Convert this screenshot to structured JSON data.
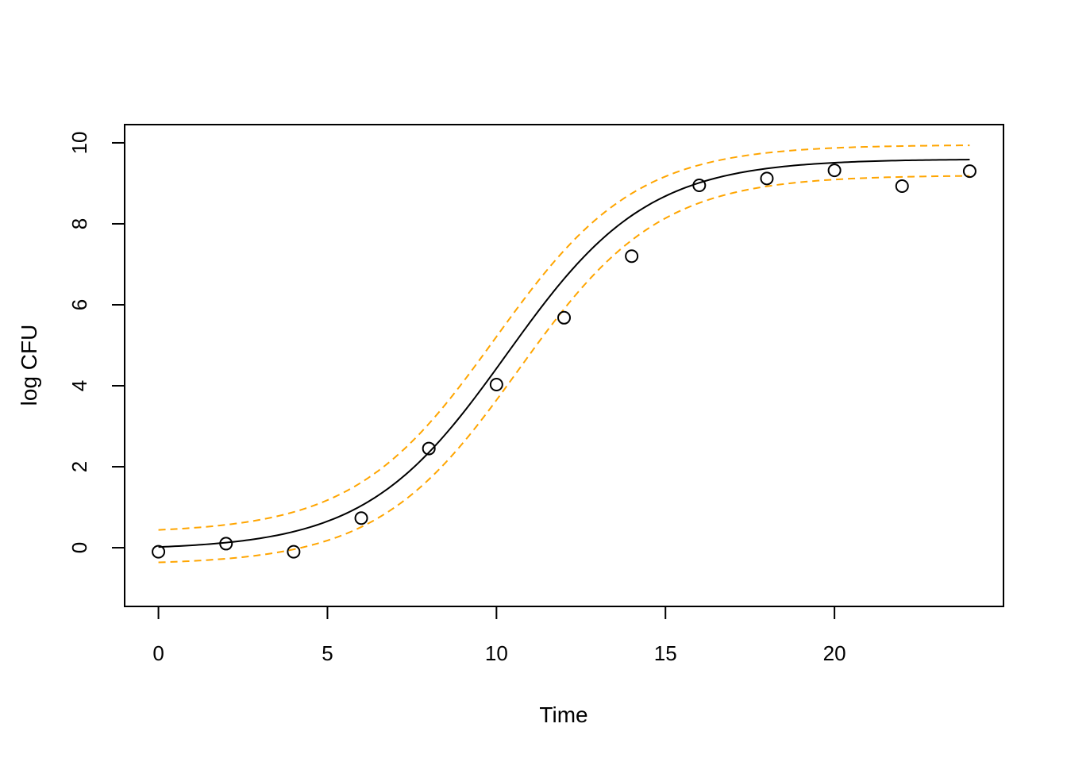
{
  "chart_data": {
    "type": "scatter",
    "title": "",
    "xlabel": "Time",
    "ylabel": "log CFU",
    "xlim": [
      -1,
      25
    ],
    "ylim": [
      -1.45,
      10.45
    ],
    "xticks": [
      0,
      5,
      10,
      15,
      20
    ],
    "yticks": [
      0,
      2,
      4,
      6,
      8,
      10
    ],
    "grid": false,
    "legend": "none",
    "series": [
      {
        "kind": "points",
        "marker": "open-circle",
        "color": "#000000",
        "x": [
          0,
          2,
          4,
          6,
          8,
          10,
          12,
          14,
          16,
          18,
          20,
          22,
          24
        ],
        "y": [
          -0.1,
          0.1,
          -0.1,
          0.73,
          2.45,
          4.03,
          5.68,
          7.2,
          8.95,
          9.12,
          9.32,
          8.93,
          9.3
        ]
      },
      {
        "kind": "fitted-curve",
        "style": "solid",
        "color": "#000000",
        "model": "logistic",
        "params": {
          "y0": -0.05,
          "ymax": 9.6,
          "k": 0.48,
          "x_mid": 10.3
        },
        "x_range": [
          0,
          24
        ]
      },
      {
        "kind": "confidence-band-upper",
        "style": "dashed",
        "color": "#FFA500",
        "model": "logistic",
        "params": {
          "y0": 0.36,
          "ymax": 9.95,
          "k": 0.48,
          "x_mid": 9.95
        },
        "x_range": [
          0,
          24
        ]
      },
      {
        "kind": "confidence-band-lower",
        "style": "dashed",
        "color": "#FFA500",
        "model": "logistic",
        "params": {
          "y0": -0.42,
          "ymax": 9.2,
          "k": 0.48,
          "x_mid": 10.65
        },
        "x_range": [
          0,
          24
        ]
      }
    ]
  }
}
